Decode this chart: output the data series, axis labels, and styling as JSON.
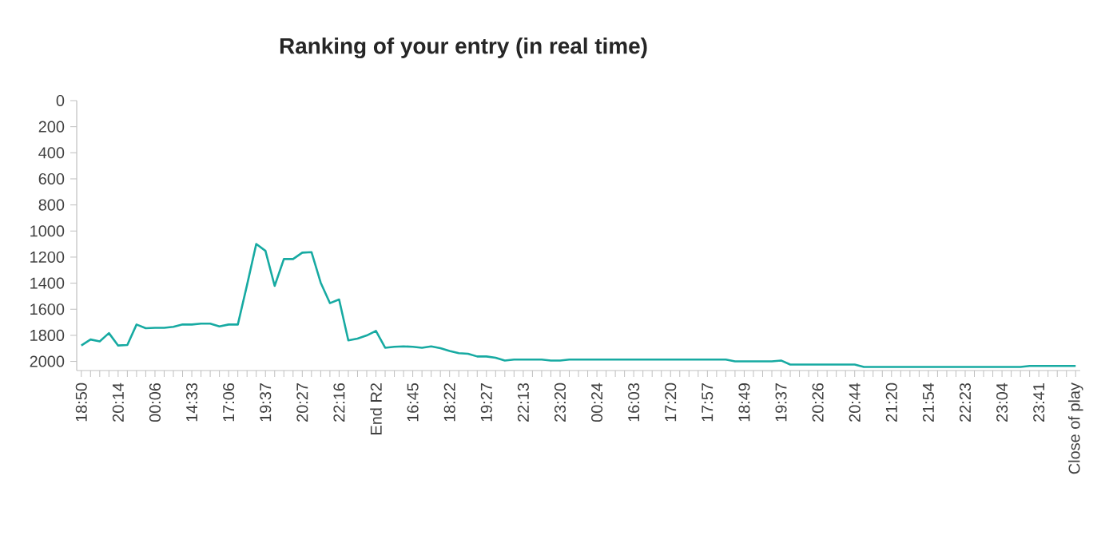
{
  "chart_data": {
    "type": "line",
    "title": "Ranking of your entry (in real time)",
    "categories": [
      "18:50",
      null,
      null,
      null,
      "20:14",
      null,
      null,
      null,
      "00:06",
      null,
      null,
      null,
      "14:33",
      null,
      null,
      null,
      "17:06",
      null,
      null,
      null,
      "19:37",
      null,
      null,
      null,
      "20:27",
      null,
      null,
      null,
      "22:16",
      null,
      null,
      null,
      "End R2",
      null,
      null,
      null,
      "16:45",
      null,
      null,
      null,
      "18:22",
      null,
      null,
      null,
      "19:27",
      null,
      null,
      null,
      "22:13",
      null,
      null,
      null,
      "23:20",
      null,
      null,
      null,
      "00:24",
      null,
      null,
      null,
      "16:03",
      null,
      null,
      null,
      "17:20",
      null,
      null,
      null,
      "17:57",
      null,
      null,
      null,
      "18:49",
      null,
      null,
      null,
      "19:37",
      null,
      null,
      null,
      "20:26",
      null,
      null,
      null,
      "20:44",
      null,
      null,
      null,
      "21:20",
      null,
      null,
      null,
      "21:54",
      null,
      null,
      null,
      "22:23",
      null,
      null,
      null,
      "23:04",
      null,
      null,
      null,
      "23:41",
      null,
      null,
      null,
      "Close of play"
    ],
    "series": [
      {
        "color": "#17aaa2",
        "values": [
          1878,
          1832,
          1846,
          1783,
          1878,
          1874,
          1717,
          1745,
          1742,
          1742,
          1735,
          1717,
          1717,
          1710,
          1710,
          1731,
          1717,
          1717,
          1414,
          1099,
          1152,
          1421,
          1215,
          1215,
          1166,
          1162,
          1396,
          1553,
          1525,
          1839,
          1825,
          1801,
          1766,
          1895,
          1888,
          1885,
          1888,
          1895,
          1885,
          1899,
          1920,
          1937,
          1941,
          1962,
          1962,
          1972,
          1993,
          1986,
          1986,
          1986,
          1986,
          1993,
          1993,
          1986,
          1986,
          1986,
          1986,
          1986,
          1986,
          1986,
          1986,
          1986,
          1986,
          1986,
          1986,
          1986,
          1986,
          1986,
          1986,
          1986,
          1986,
          2000,
          2000,
          2000,
          2000,
          2000,
          1993,
          2024,
          2024,
          2024,
          2024,
          2024,
          2024,
          2024,
          2024,
          2042,
          2042,
          2042,
          2042,
          2042,
          2042,
          2042,
          2042,
          2042,
          2042,
          2042,
          2042,
          2042,
          2042,
          2042,
          2042,
          2042,
          2042,
          2035,
          2035,
          2035,
          2035,
          2035,
          2035
        ]
      }
    ],
    "ylim": [
      2070,
      0
    ],
    "yticks": [
      0,
      200,
      400,
      600,
      800,
      1000,
      1200,
      1400,
      1600,
      1800,
      2000
    ],
    "grid": false,
    "legend": false,
    "marker": "none",
    "line_style": "solid"
  }
}
